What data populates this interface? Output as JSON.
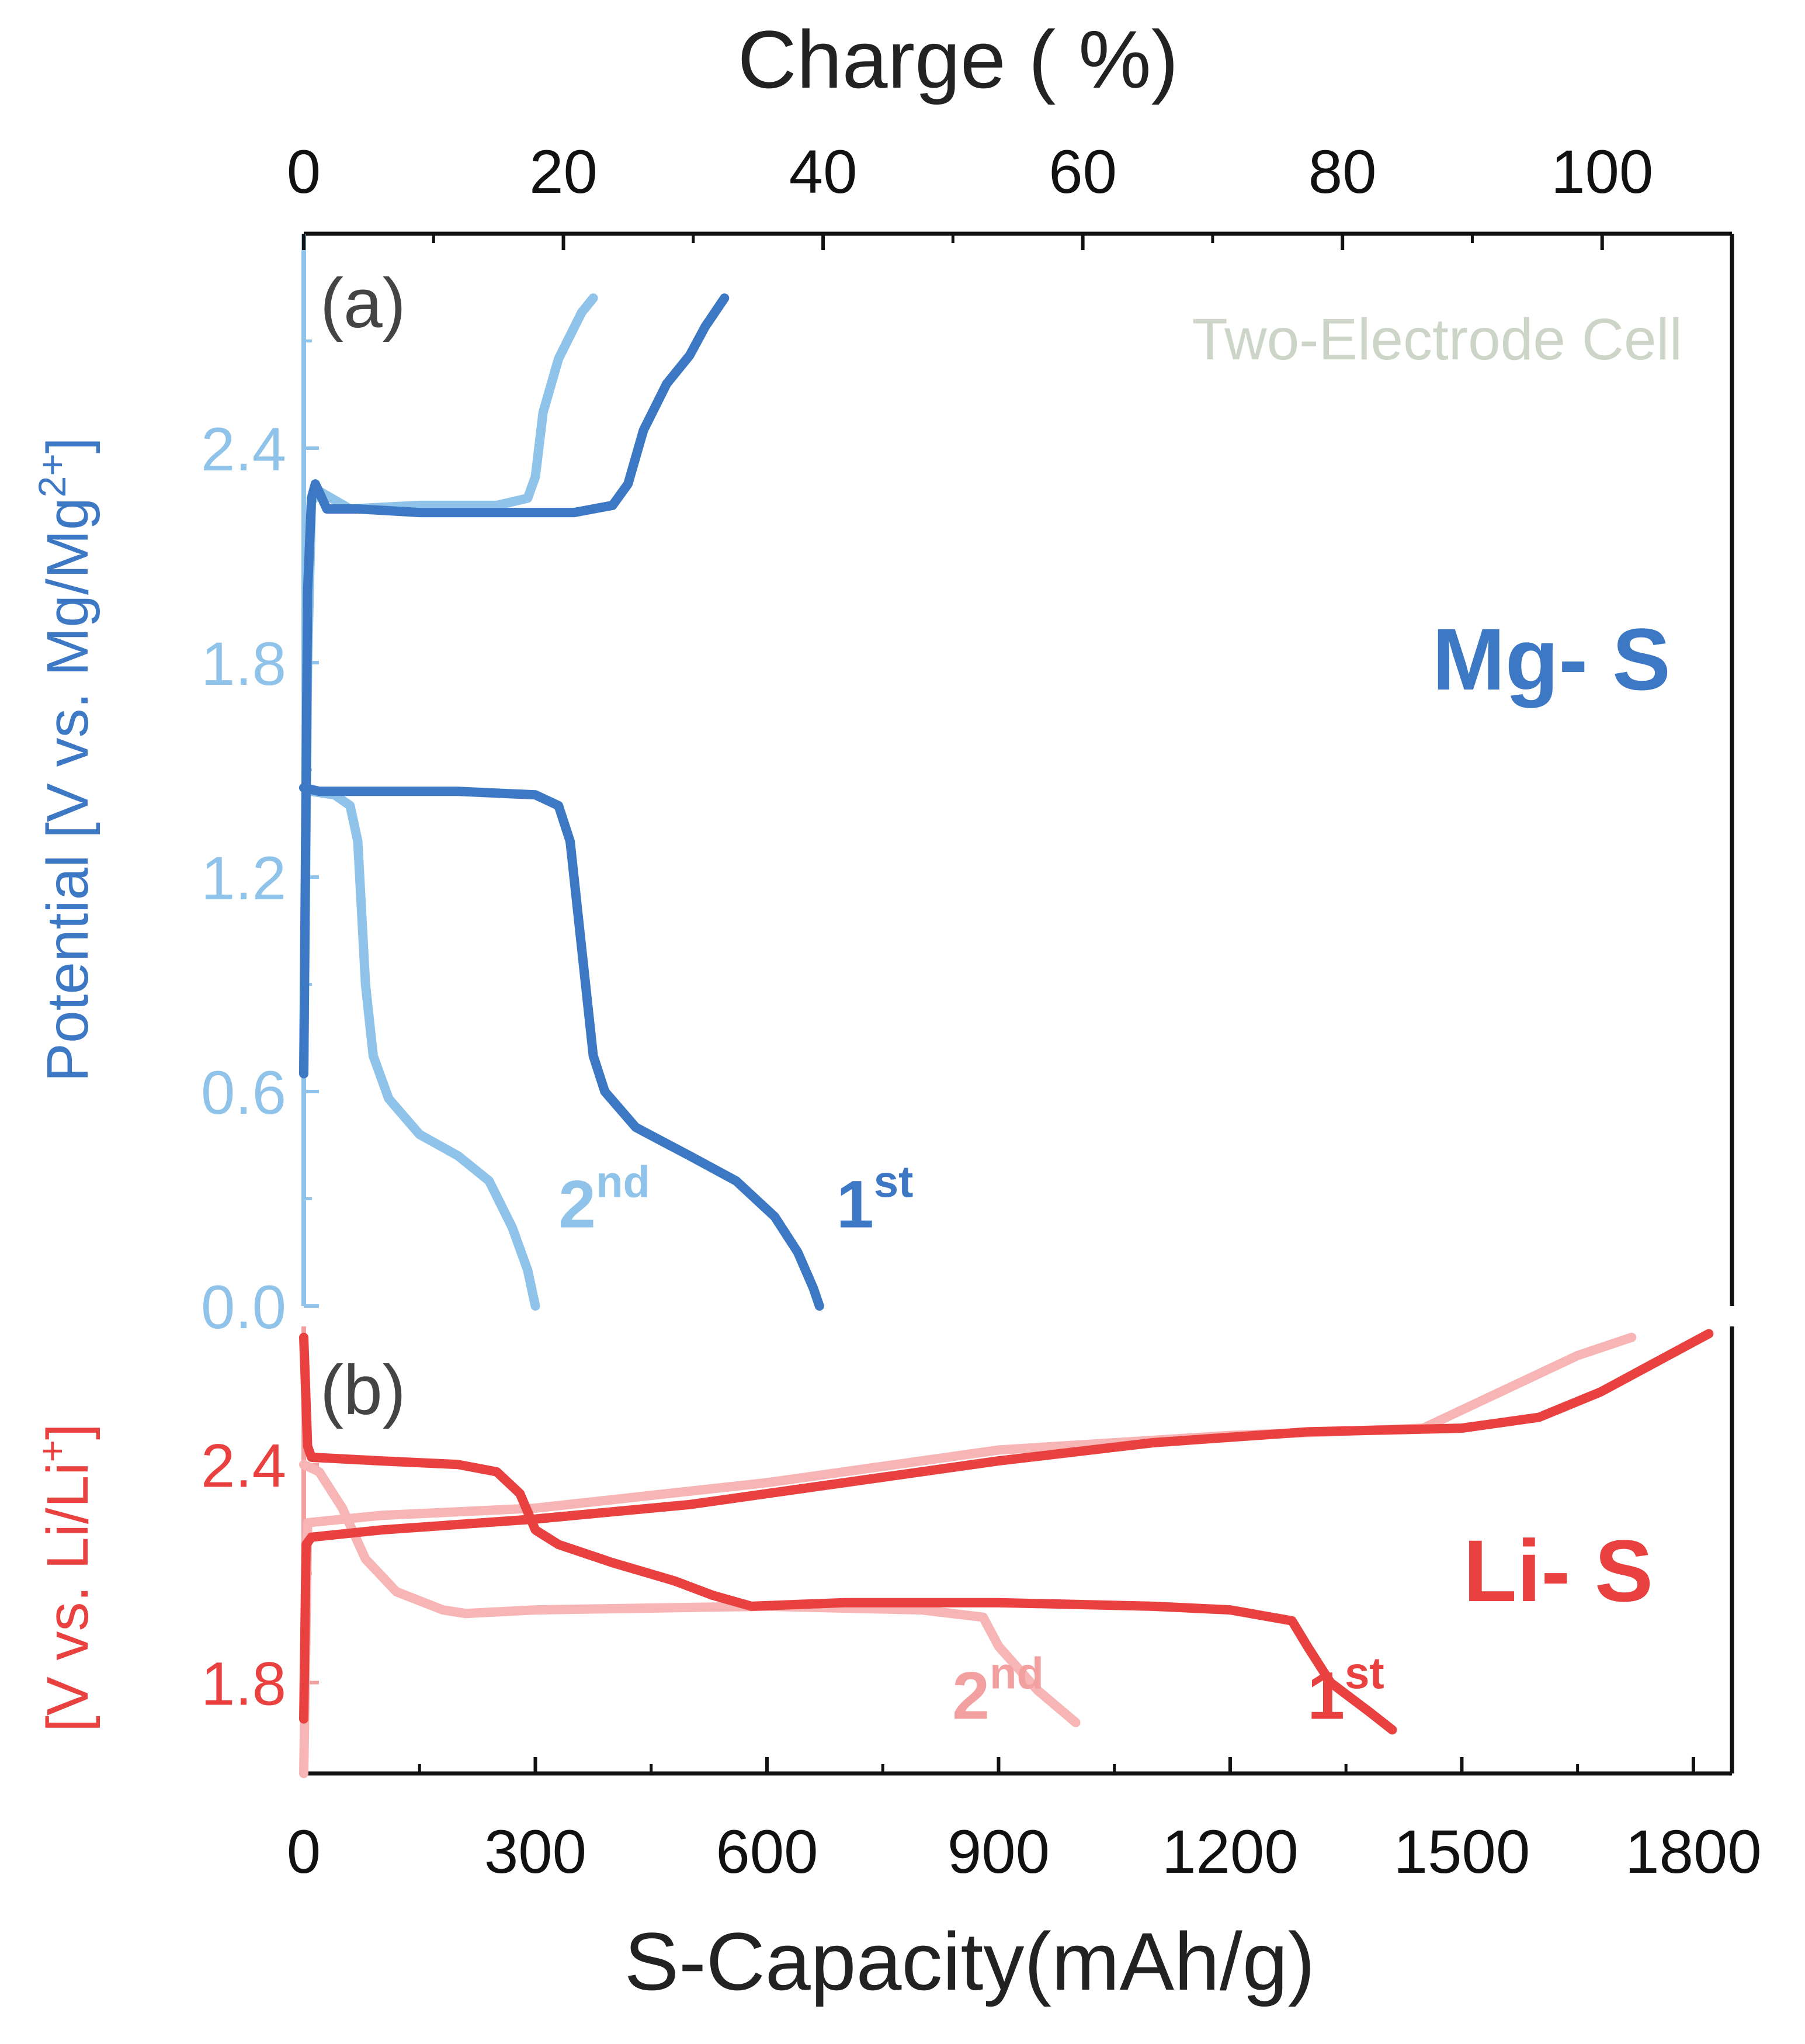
{
  "chart_data": [
    {
      "panel": "a",
      "type": "line",
      "panel_label": "(a)",
      "annotation": "Two-Electrode Cell",
      "chemistry_label": "Mg- S",
      "ylabel_text": "Potential [V vs. Mg/Mg",
      "ylabel_sup": "2+",
      "ylabel_close": "]",
      "ylim": [
        0,
        3.0
      ],
      "yticks": [
        0.0,
        0.6,
        1.2,
        1.8,
        2.4
      ],
      "ytick_labels": [
        "0.0",
        "0.6",
        "1.2",
        "1.8",
        "2.4"
      ],
      "top_axis": {
        "label": "Charge ( %)",
        "range": [
          0,
          110
        ],
        "ticks": [
          0,
          20,
          40,
          60,
          80,
          100
        ],
        "tick_labels": [
          "0",
          "20",
          "40",
          "60",
          "80",
          "100"
        ]
      },
      "cycle_labels": [
        {
          "base": "2",
          "sup": "nd",
          "x": 330,
          "y": 0.22,
          "color": "#8fc3ea"
        },
        {
          "base": "1",
          "sup": "st",
          "x": 690,
          "y": 0.22,
          "color": "#3d78c5"
        }
      ],
      "series": [
        {
          "name": "2nd discharge",
          "color": "#8fc3ea",
          "x": [
            0,
            10,
            40,
            60,
            70,
            75,
            80,
            90,
            110,
            150,
            200,
            240,
            270,
            290,
            300
          ],
          "y": [
            1.45,
            1.44,
            1.43,
            1.4,
            1.3,
            1.1,
            0.9,
            0.7,
            0.58,
            0.48,
            0.42,
            0.35,
            0.22,
            0.1,
            0.0
          ]
        },
        {
          "name": "2nd charge",
          "color": "#8fc3ea",
          "x": [
            0,
            5,
            10,
            20,
            60,
            150,
            250,
            290,
            300,
            310,
            330,
            360,
            375
          ],
          "y": [
            0.65,
            1.8,
            2.25,
            2.28,
            2.23,
            2.24,
            2.24,
            2.26,
            2.32,
            2.5,
            2.65,
            2.78,
            2.82
          ]
        },
        {
          "name": "1st discharge",
          "color": "#3d78c5",
          "x": [
            0,
            20,
            100,
            200,
            300,
            330,
            345,
            355,
            365,
            375,
            390,
            430,
            500,
            560,
            610,
            640,
            660,
            668
          ],
          "y": [
            1.45,
            1.44,
            1.44,
            1.44,
            1.43,
            1.4,
            1.3,
            1.1,
            0.9,
            0.7,
            0.6,
            0.5,
            0.42,
            0.35,
            0.25,
            0.15,
            0.05,
            0.0
          ]
        },
        {
          "name": "1st charge",
          "color": "#3d78c5",
          "x": [
            0,
            5,
            10,
            15,
            30,
            70,
            150,
            250,
            350,
            400,
            420,
            440,
            470,
            500,
            520,
            545
          ],
          "y": [
            0.65,
            2.0,
            2.26,
            2.3,
            2.23,
            2.23,
            2.22,
            2.22,
            2.22,
            2.24,
            2.3,
            2.45,
            2.58,
            2.66,
            2.74,
            2.82
          ]
        }
      ]
    },
    {
      "panel": "b",
      "type": "line",
      "panel_label": "(b)",
      "chemistry_label": "Li- S",
      "ylabel_text": "[V vs. Li/Li",
      "ylabel_sup": "+",
      "ylabel_close": "]",
      "ylim": [
        1.55,
        2.78
      ],
      "yticks": [
        1.8,
        2.4
      ],
      "ytick_labels": [
        "1.8",
        "2.4"
      ],
      "xlabel": "S-Capacity(mAh/g)",
      "xlim": [
        0,
        1850
      ],
      "xticks": [
        0,
        300,
        600,
        900,
        1200,
        1500,
        1800
      ],
      "xtick_labels": [
        "0",
        "300",
        "600",
        "900",
        "1200",
        "1500",
        "1800"
      ],
      "cycle_labels": [
        {
          "base": "2",
          "sup": "nd",
          "x": 840,
          "y": 1.7,
          "color": "#f2a0a0"
        },
        {
          "base": "1",
          "sup": "st",
          "x": 1300,
          "y": 1.7,
          "color": "#e8413f"
        }
      ],
      "series": [
        {
          "name": "2nd discharge",
          "color": "#f7b5b5",
          "x": [
            0,
            20,
            50,
            80,
            120,
            180,
            210,
            300,
            600,
            800,
            880,
            900,
            950,
            1000
          ],
          "y": [
            2.4,
            2.38,
            2.28,
            2.14,
            2.05,
            2.0,
            1.99,
            2.0,
            2.01,
            2.0,
            1.98,
            1.9,
            1.78,
            1.69
          ]
        },
        {
          "name": "2nd charge",
          "color": "#f7b5b5",
          "x": [
            0,
            5,
            100,
            300,
            600,
            900,
            1200,
            1450,
            1550,
            1650,
            1720
          ],
          "y": [
            1.55,
            2.24,
            2.26,
            2.28,
            2.35,
            2.44,
            2.48,
            2.5,
            2.6,
            2.7,
            2.75
          ]
        },
        {
          "name": "1st discharge",
          "color": "#e8413f",
          "x": [
            0,
            5,
            10,
            100,
            200,
            250,
            280,
            300,
            330,
            400,
            480,
            530,
            580,
            700,
            900,
            1100,
            1200,
            1280,
            1300,
            1330,
            1380,
            1410
          ],
          "y": [
            2.75,
            2.45,
            2.42,
            2.41,
            2.4,
            2.38,
            2.32,
            2.22,
            2.18,
            2.13,
            2.08,
            2.04,
            2.01,
            2.02,
            2.02,
            2.01,
            2.0,
            1.97,
            1.9,
            1.8,
            1.72,
            1.67
          ]
        },
        {
          "name": "1st charge",
          "color": "#e8413f",
          "x": [
            0,
            3,
            10,
            100,
            300,
            500,
            700,
            900,
            1100,
            1300,
            1500,
            1600,
            1680,
            1750,
            1820
          ],
          "y": [
            1.7,
            2.18,
            2.2,
            2.22,
            2.25,
            2.29,
            2.35,
            2.41,
            2.46,
            2.49,
            2.5,
            2.53,
            2.6,
            2.68,
            2.76
          ]
        }
      ]
    }
  ]
}
